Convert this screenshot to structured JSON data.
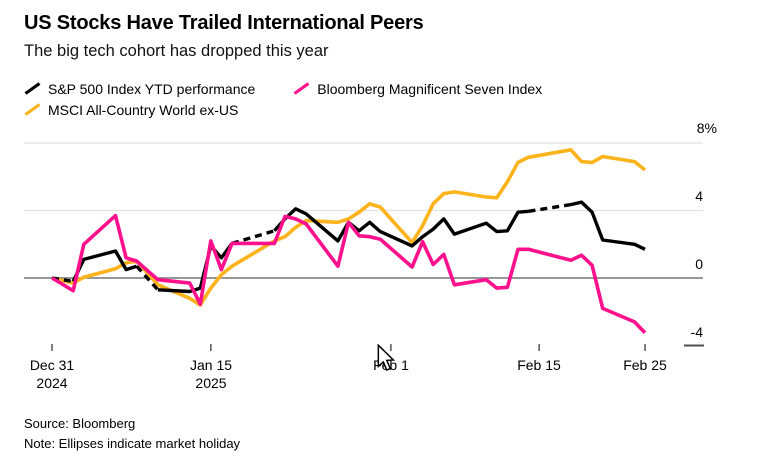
{
  "header": {
    "title": "US Stocks Have Trailed International Peers",
    "subtitle": "The big tech cohort has dropped this year"
  },
  "footer": {
    "source": "Source: Bloomberg",
    "note": "Note: Ellipses indicate market holiday"
  },
  "chart_data": {
    "type": "line",
    "title": "US Stocks Have Trailed International Peers",
    "subtitle": "The big tech cohort has dropped this year",
    "unit": "%",
    "ylim": [
      -4.5,
      8.5
    ],
    "grid": "horizontal",
    "legend_position": "top-left",
    "y_ticks": [
      {
        "label": "8%",
        "value": 8
      },
      {
        "label": "4",
        "value": 4
      },
      {
        "label": "0",
        "value": 0
      },
      {
        "label": "-4",
        "value": -4
      }
    ],
    "x_ticks": [
      {
        "label": "Dec 31",
        "sublabel": "2024",
        "day": 0
      },
      {
        "label": "Jan 15",
        "sublabel": "2025",
        "day": 15
      },
      {
        "label": "Feb 1",
        "day": 32
      },
      {
        "label": "Feb 15",
        "day": 46
      },
      {
        "label": "Feb 25",
        "day": 56
      }
    ],
    "dates": [
      "Dec 31",
      "Jan 2",
      "Jan 3",
      "Jan 6",
      "Jan 7",
      "Jan 8",
      "Jan 10",
      "Jan 13",
      "Jan 14",
      "Jan 15",
      "Jan 16",
      "Jan 17",
      "Jan 21",
      "Jan 22",
      "Jan 23",
      "Jan 24",
      "Jan 27",
      "Jan 28",
      "Jan 29",
      "Jan 30",
      "Jan 31",
      "Feb 3",
      "Feb 4",
      "Feb 5",
      "Feb 6",
      "Feb 7",
      "Feb 10",
      "Feb 11",
      "Feb 12",
      "Feb 13",
      "Feb 14",
      "Feb 18",
      "Feb 19",
      "Feb 20",
      "Feb 21",
      "Feb 24",
      "Feb 25"
    ],
    "day_index": [
      0,
      2,
      3,
      6,
      7,
      8,
      10,
      13,
      14,
      15,
      16,
      17,
      21,
      22,
      23,
      24,
      27,
      28,
      29,
      30,
      31,
      34,
      35,
      36,
      37,
      38,
      41,
      42,
      43,
      44,
      45,
      49,
      50,
      51,
      52,
      55,
      56
    ],
    "series": [
      {
        "name": "S&P 500 Index YTD performance",
        "color": "#000000",
        "values": [
          0,
          -0.2,
          1.1,
          1.6,
          0.5,
          0.7,
          -0.7,
          -0.8,
          -0.6,
          1.9,
          1.2,
          2.05,
          2.8,
          3.5,
          4.1,
          3.8,
          2.2,
          3.3,
          2.8,
          3.3,
          2.75,
          1.9,
          2.45,
          2.9,
          3.5,
          2.6,
          3.25,
          2.75,
          2.8,
          3.9,
          3.95,
          4.35,
          4.5,
          3.9,
          2.25,
          2.0,
          1.7
        ],
        "dashed_holiday_segments": [
          [
            0,
            1
          ],
          [
            5,
            6
          ],
          [
            11,
            12
          ],
          [
            30,
            31
          ]
        ]
      },
      {
        "name": "Bloomberg Magnificent Seven Index",
        "color": "#ff108d",
        "values": [
          0,
          -0.75,
          2.0,
          3.7,
          1.2,
          1.0,
          -0.1,
          -0.3,
          -1.55,
          2.2,
          0.5,
          2.05,
          2.05,
          3.65,
          3.5,
          3.2,
          0.7,
          3.3,
          2.5,
          2.45,
          2.3,
          0.65,
          2.15,
          0.8,
          1.4,
          -0.4,
          -0.1,
          -0.6,
          -0.55,
          1.7,
          1.7,
          1.05,
          1.35,
          0.75,
          -1.8,
          -2.6,
          -3.25
        ]
      },
      {
        "name": "MSCI All-Country World ex-US",
        "color": "#fcb31c",
        "values": [
          0,
          -0.3,
          0.05,
          0.55,
          0.9,
          1.0,
          -0.4,
          -1.2,
          -1.6,
          -0.6,
          0.2,
          0.7,
          2.2,
          2.45,
          3.0,
          3.4,
          3.3,
          3.5,
          3.9,
          4.4,
          4.2,
          2.1,
          3.1,
          4.4,
          5.0,
          5.1,
          4.8,
          4.75,
          5.7,
          6.85,
          7.15,
          7.6,
          6.9,
          6.85,
          7.2,
          6.9,
          6.4
        ]
      }
    ],
    "colors": {
      "gridline": "#e2e2e2",
      "zero_line": "#757575",
      "tick": "#3a3a3a"
    }
  }
}
